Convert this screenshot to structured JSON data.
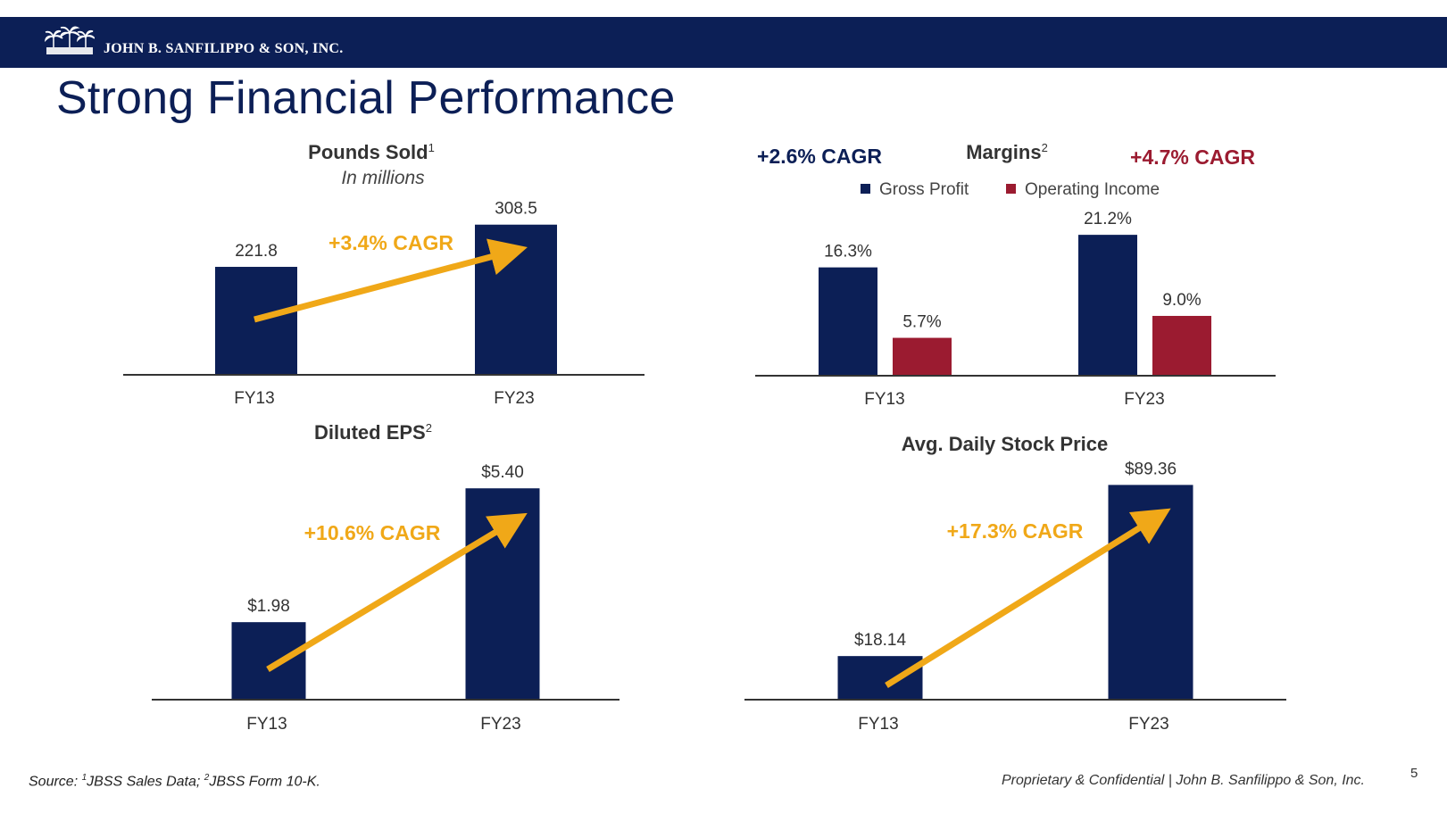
{
  "header": {
    "company": "JOHN B. SANFILIPPO & SON, INC.",
    "brand_color": "#0c1f56"
  },
  "title": "Strong Financial Performance",
  "colors": {
    "navy": "#0c1f56",
    "red": "#9b1b30",
    "gold": "#f0a818"
  },
  "chart_data": [
    {
      "type": "bar",
      "title": "Pounds Sold",
      "title_sup": "1",
      "subtitle": "In millions",
      "categories": [
        "FY13",
        "FY23"
      ],
      "values": [
        221.8,
        308.5
      ],
      "labels": [
        "221.8",
        "308.5"
      ],
      "cagr": "+3.4% CAGR",
      "ylim": [
        0,
        330
      ]
    },
    {
      "type": "bar",
      "title": "Margins",
      "title_sup": "2",
      "categories": [
        "FY13",
        "FY23"
      ],
      "series": [
        {
          "name": "Gross Profit",
          "values": [
            16.3,
            21.2
          ],
          "labels": [
            "16.3%",
            "21.2%"
          ],
          "cagr": "+2.6% CAGR"
        },
        {
          "name": "Operating Income",
          "values": [
            5.7,
            9.0
          ],
          "labels": [
            "5.7%",
            "9.0%"
          ],
          "cagr": "+4.7% CAGR"
        }
      ],
      "ylim": [
        0,
        23.5
      ]
    },
    {
      "type": "bar",
      "title": "Diluted EPS",
      "title_sup": "2",
      "categories": [
        "FY13",
        "FY23"
      ],
      "values": [
        1.98,
        5.4
      ],
      "labels": [
        "$1.98",
        "$5.40"
      ],
      "cagr": "+10.6% CAGR",
      "ylim": [
        0,
        5.45
      ]
    },
    {
      "type": "bar",
      "title": "Avg. Daily Stock Price",
      "categories": [
        "FY13",
        "FY23"
      ],
      "values": [
        18.14,
        89.36
      ],
      "labels": [
        "$18.14",
        "$89.36"
      ],
      "cagr": "+17.3% CAGR",
      "ylim": [
        0,
        89.5
      ]
    }
  ],
  "footer": {
    "source_prefix": "Source: ",
    "source_sup1": "1",
    "source_1": "JBSS Sales Data; ",
    "source_sup2": "2",
    "source_2": "JBSS Form 10-K.",
    "confidential": "Proprietary & Confidential | John B. Sanfilippo & Son, Inc.",
    "page_number": "5"
  }
}
